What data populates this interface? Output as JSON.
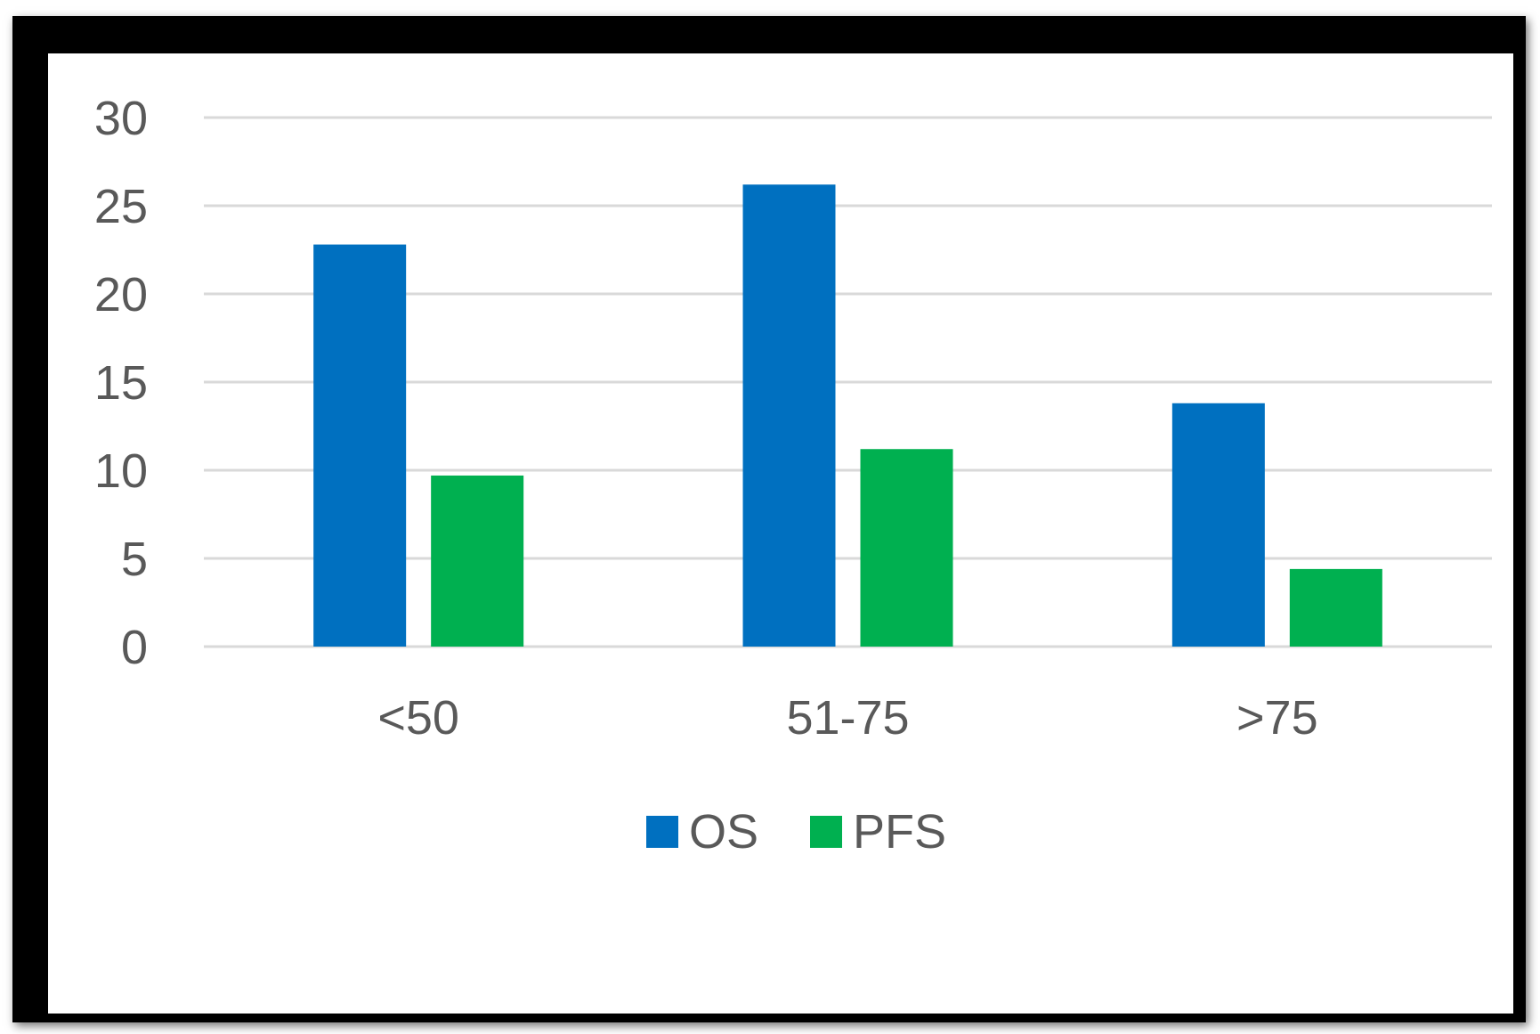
{
  "chart_data": {
    "type": "bar",
    "categories": [
      "<50",
      "51-75",
      ">75"
    ],
    "series": [
      {
        "name": "OS",
        "values": [
          22.8,
          26.2,
          13.8
        ],
        "color": "#0070C0"
      },
      {
        "name": "PFS",
        "values": [
          9.7,
          11.2,
          4.4
        ],
        "color": "#00B050"
      }
    ],
    "ylim": [
      0,
      30
    ],
    "yticks": [
      0,
      5,
      10,
      15,
      20,
      25,
      30
    ],
    "grid": true,
    "gridColor": "#d9d9d9",
    "legend": "bottom",
    "title": "",
    "xlabel": "",
    "ylabel": ""
  }
}
